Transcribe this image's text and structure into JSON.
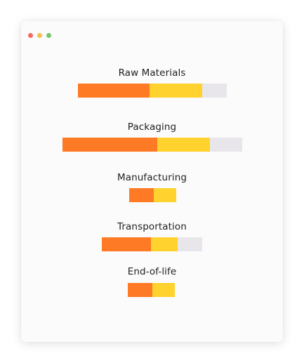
{
  "window": {
    "controls": [
      {
        "name": "close",
        "color": "#f26b5b"
      },
      {
        "name": "minimize",
        "color": "#f6be4f"
      },
      {
        "name": "maximize",
        "color": "#7cc36e"
      }
    ]
  },
  "colors": {
    "segment_1": "#ff7a24",
    "segment_2": "#ffd22e",
    "segment_3": "#e8e6ea"
  },
  "stages": [
    {
      "label": "Raw Materials",
      "values": [
        102,
        75,
        35
      ]
    },
    {
      "label": "Packaging",
      "values": [
        135,
        75,
        46
      ]
    },
    {
      "label": "Manufacturing",
      "values": [
        35,
        32,
        0
      ]
    },
    {
      "label": "Transportation",
      "values": [
        70,
        38,
        35
      ]
    },
    {
      "label": "End-of-life",
      "values": [
        35,
        32,
        0
      ]
    }
  ]
}
